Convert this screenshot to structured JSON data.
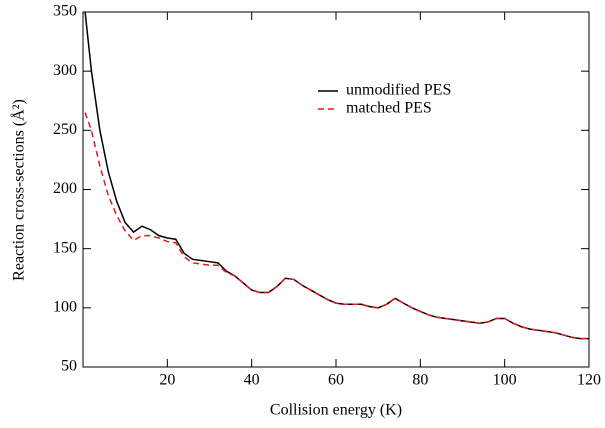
{
  "chart_data": {
    "type": "line",
    "xlabel": "Collision energy (K)",
    "ylabel": "Reaction cross-sections (Å²)",
    "x": [
      0.5,
      2,
      4,
      6,
      8,
      10,
      12,
      14,
      16,
      18,
      20,
      22,
      24,
      26,
      28,
      30,
      32,
      34,
      36,
      38,
      40,
      42,
      44,
      46,
      48,
      50,
      52,
      54,
      56,
      58,
      60,
      62,
      64,
      66,
      68,
      70,
      72,
      74,
      76,
      78,
      80,
      82,
      84,
      86,
      88,
      90,
      92,
      94,
      96,
      98,
      100,
      102,
      104,
      106,
      108,
      110,
      112,
      114,
      116,
      118,
      120
    ],
    "series": [
      {
        "name": "unmodified PES",
        "color": "#000000",
        "dash": false,
        "values": [
          350,
          300,
          250,
          215,
          190,
          172,
          164,
          169,
          166,
          161,
          159,
          158,
          146,
          141,
          140,
          139,
          138,
          131,
          127,
          121,
          115,
          113,
          113,
          118,
          125,
          124,
          119,
          115,
          111,
          107,
          104,
          103,
          103,
          103,
          101,
          100,
          103,
          108,
          104,
          100,
          97,
          94,
          92,
          91,
          90,
          89,
          88,
          87,
          88,
          91,
          91,
          87,
          84,
          82,
          81,
          80,
          79,
          77,
          75,
          74,
          74
        ]
      },
      {
        "name": "matched PES",
        "color": "#e8161b",
        "dash": true,
        "values": [
          265,
          250,
          220,
          195,
          178,
          165,
          157,
          161,
          161,
          159,
          156,
          155,
          143,
          138,
          137,
          136,
          136,
          130,
          127,
          121,
          115,
          113,
          113,
          118,
          125,
          124,
          119,
          115,
          111,
          107,
          104,
          103,
          103,
          103,
          101,
          100,
          103,
          108,
          104,
          100,
          97,
          94,
          92,
          91,
          90,
          89,
          88,
          87,
          88,
          91,
          91,
          87,
          84,
          82,
          81,
          80,
          79,
          77,
          75,
          74,
          74
        ]
      }
    ],
    "xlim": [
      0,
      120
    ],
    "xticks": [
      20,
      40,
      60,
      80,
      100,
      120
    ],
    "ylim": [
      50,
      350
    ],
    "yticks": [
      50,
      100,
      150,
      200,
      250,
      300,
      350
    ]
  }
}
